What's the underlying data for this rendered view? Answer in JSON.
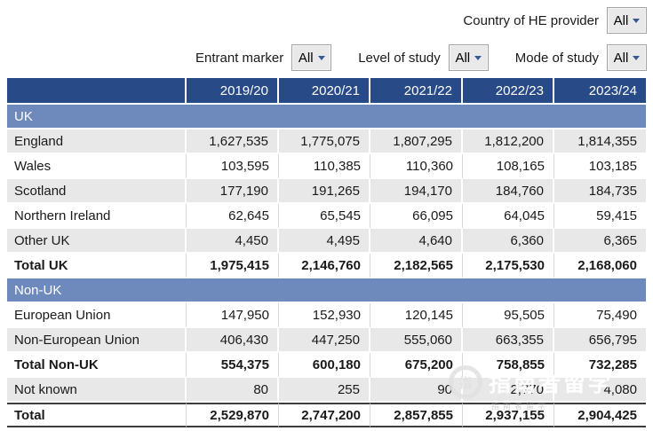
{
  "filters": {
    "country": {
      "label": "Country of HE provider",
      "value": "All"
    },
    "entrant": {
      "label": "Entrant marker",
      "value": "All"
    },
    "level": {
      "label": "Level of study",
      "value": "All"
    },
    "mode": {
      "label": "Mode of study",
      "value": "All"
    }
  },
  "table": {
    "columns": [
      "2019/20",
      "2020/21",
      "2021/22",
      "2022/23",
      "2023/24"
    ],
    "rows": [
      {
        "type": "section",
        "label": "UK"
      },
      {
        "type": "data",
        "label": "England",
        "values": [
          "1,627,535",
          "1,775,075",
          "1,807,295",
          "1,812,200",
          "1,814,355"
        ],
        "striped": true,
        "bold": false
      },
      {
        "type": "data",
        "label": "Wales",
        "values": [
          "103,595",
          "110,385",
          "110,360",
          "108,165",
          "103,185"
        ],
        "striped": false,
        "bold": false
      },
      {
        "type": "data",
        "label": "Scotland",
        "values": [
          "177,190",
          "191,265",
          "194,170",
          "184,760",
          "184,735"
        ],
        "striped": true,
        "bold": false
      },
      {
        "type": "data",
        "label": "Northern Ireland",
        "values": [
          "62,645",
          "65,545",
          "66,095",
          "64,045",
          "59,415"
        ],
        "striped": false,
        "bold": false
      },
      {
        "type": "data",
        "label": "Other UK",
        "values": [
          "4,450",
          "4,495",
          "4,640",
          "6,360",
          "6,365"
        ],
        "striped": true,
        "bold": false
      },
      {
        "type": "data",
        "label": "Total UK",
        "values": [
          "1,975,415",
          "2,146,760",
          "2,182,565",
          "2,175,530",
          "2,168,060"
        ],
        "striped": false,
        "bold": true
      },
      {
        "type": "section",
        "label": "Non-UK"
      },
      {
        "type": "data",
        "label": "European Union",
        "values": [
          "147,950",
          "152,930",
          "120,145",
          "95,505",
          "75,490"
        ],
        "striped": false,
        "bold": false
      },
      {
        "type": "data",
        "label": "Non-European Union",
        "values": [
          "406,430",
          "447,250",
          "555,060",
          "663,355",
          "656,795"
        ],
        "striped": true,
        "bold": false
      },
      {
        "type": "data",
        "label": "Total Non-UK",
        "values": [
          "554,375",
          "600,180",
          "675,200",
          "758,855",
          "732,285"
        ],
        "striped": false,
        "bold": true
      },
      {
        "type": "data",
        "label": "Not known",
        "values": [
          "80",
          "255",
          "90",
          "2,770",
          "4,080"
        ],
        "striped": true,
        "bold": false
      },
      {
        "type": "data",
        "label": "Total",
        "values": [
          "2,529,870",
          "2,747,200",
          "2,857,855",
          "2,937,155",
          "2,904,425"
        ],
        "striped": false,
        "bold": true,
        "grand_total": true
      }
    ]
  },
  "watermark": {
    "text": "指南者留学",
    "logo_glyph": "指"
  },
  "colors": {
    "header_bg": "#284a87",
    "section_bg": "#6e8abd",
    "stripe_bg": "#e8e8e8",
    "dropdown_arrow": "#3a5795"
  }
}
